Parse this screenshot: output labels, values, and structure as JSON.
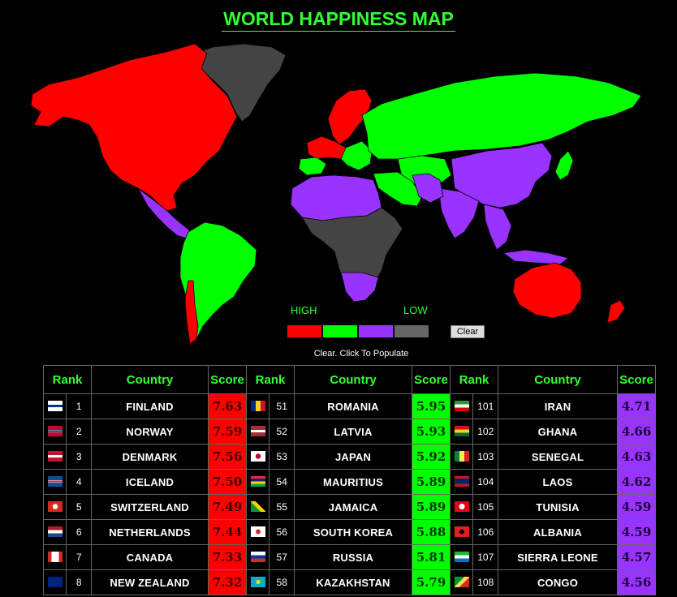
{
  "title": "WORLD HAPPINESS MAP",
  "legend": {
    "high_label": "HIGH",
    "low_label": "LOW",
    "colors": [
      "#ff0000",
      "#00ff00",
      "#9933ff",
      "#666666"
    ],
    "clear_label": "Clear"
  },
  "hint": "Clear. Click To Populate",
  "table": {
    "headers": [
      "Rank",
      "Country",
      "Score"
    ],
    "columns": [
      {
        "tier": "red",
        "rows": [
          {
            "rank": "1",
            "country": "FINLAND",
            "score": "7.63",
            "flag": "finland-flag"
          },
          {
            "rank": "2",
            "country": "NORWAY",
            "score": "7.59",
            "flag": "norway-flag"
          },
          {
            "rank": "3",
            "country": "DENMARK",
            "score": "7.56",
            "flag": "denmark-flag"
          },
          {
            "rank": "4",
            "country": "ICELAND",
            "score": "7.50",
            "flag": "iceland-flag"
          },
          {
            "rank": "5",
            "country": "SWITZERLAND",
            "score": "7.49",
            "flag": "switzerland-flag"
          },
          {
            "rank": "6",
            "country": "NETHERLANDS",
            "score": "7.44",
            "flag": "netherlands-flag"
          },
          {
            "rank": "7",
            "country": "CANADA",
            "score": "7.33",
            "flag": "canada-flag"
          },
          {
            "rank": "8",
            "country": "NEW ZEALAND",
            "score": "7.32",
            "flag": "new-zealand-flag"
          }
        ]
      },
      {
        "tier": "green",
        "rows": [
          {
            "rank": "51",
            "country": "ROMANIA",
            "score": "5.95",
            "flag": "romania-flag"
          },
          {
            "rank": "52",
            "country": "LATVIA",
            "score": "5.93",
            "flag": "latvia-flag"
          },
          {
            "rank": "53",
            "country": "JAPAN",
            "score": "5.92",
            "flag": "japan-flag"
          },
          {
            "rank": "54",
            "country": "MAURITIUS",
            "score": "5.89",
            "flag": "mauritius-flag"
          },
          {
            "rank": "55",
            "country": "JAMAICA",
            "score": "5.89",
            "flag": "jamaica-flag"
          },
          {
            "rank": "56",
            "country": "SOUTH KOREA",
            "score": "5.88",
            "flag": "south-korea-flag"
          },
          {
            "rank": "57",
            "country": "RUSSIA",
            "score": "5.81",
            "flag": "russia-flag"
          },
          {
            "rank": "58",
            "country": "KAZAKHSTAN",
            "score": "5.79",
            "flag": "kazakhstan-flag"
          }
        ]
      },
      {
        "tier": "purple",
        "rows": [
          {
            "rank": "101",
            "country": "IRAN",
            "score": "4.71",
            "flag": "iran-flag"
          },
          {
            "rank": "102",
            "country": "GHANA",
            "score": "4.66",
            "flag": "ghana-flag"
          },
          {
            "rank": "103",
            "country": "SENEGAL",
            "score": "4.63",
            "flag": "senegal-flag"
          },
          {
            "rank": "104",
            "country": "LAOS",
            "score": "4.62",
            "flag": "laos-flag"
          },
          {
            "rank": "105",
            "country": "TUNISIA",
            "score": "4.59",
            "flag": "tunisia-flag"
          },
          {
            "rank": "106",
            "country": "ALBANIA",
            "score": "4.59",
            "flag": "albania-flag"
          },
          {
            "rank": "107",
            "country": "SIERRA LEONE",
            "score": "4.57",
            "flag": "sierra-leone-flag"
          },
          {
            "rank": "108",
            "country": "CONGO",
            "score": "4.56",
            "flag": "congo-flag"
          }
        ]
      }
    ]
  }
}
